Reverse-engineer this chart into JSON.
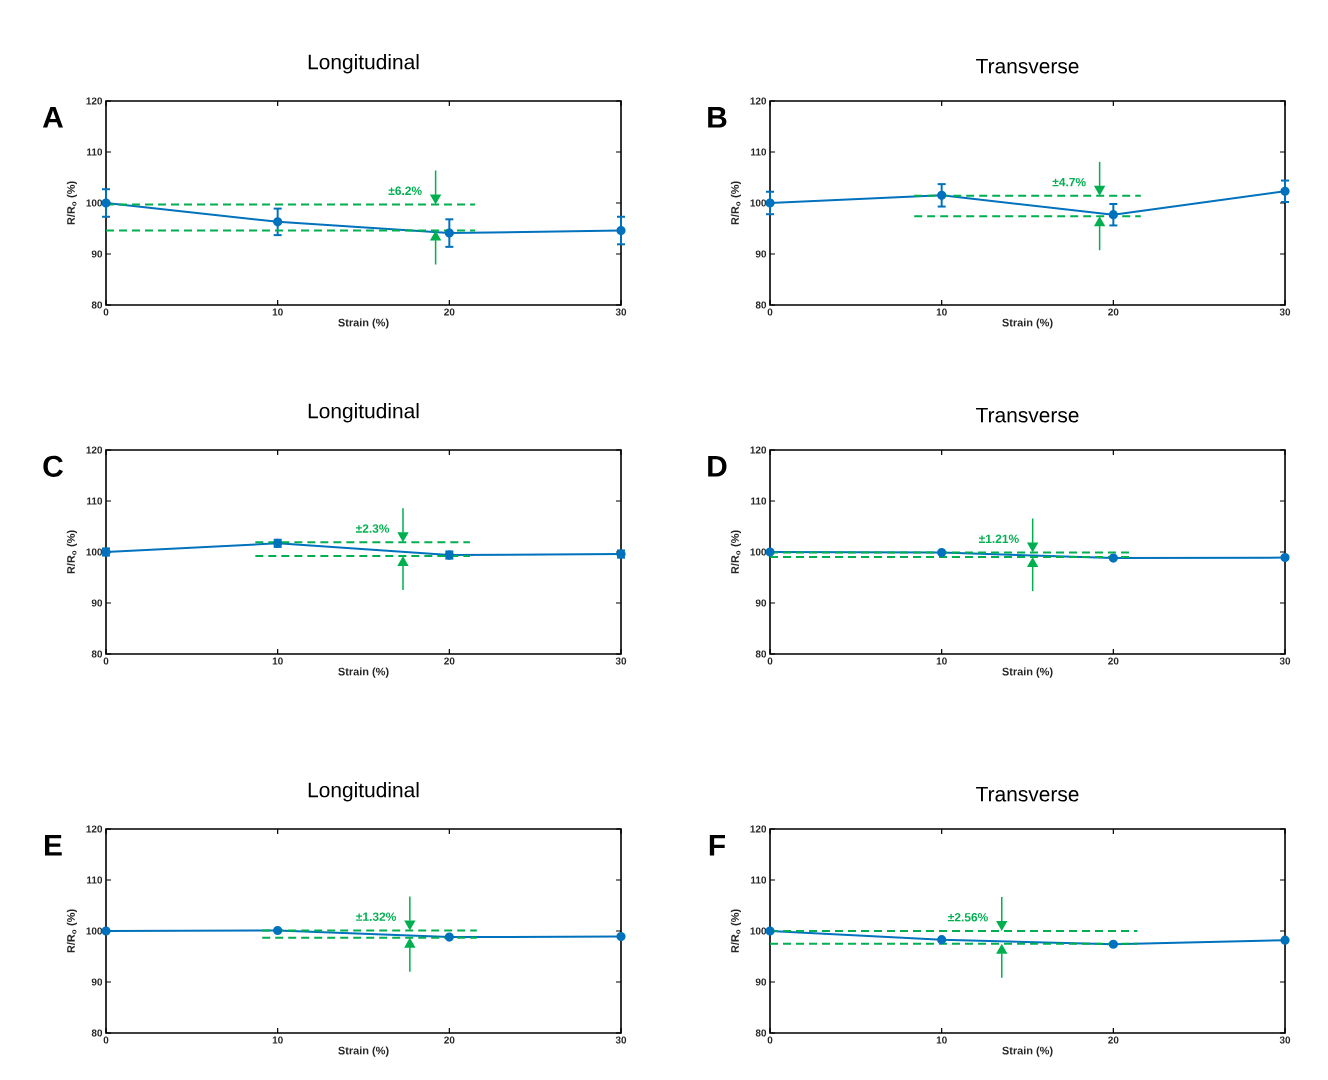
{
  "chart_data": [
    {
      "type": "line",
      "title": "Longitudinal",
      "xlabel": "Strain (%)",
      "ylabel": "R/R$_{o}$ (%)",
      "x": [
        0,
        10,
        20,
        30
      ],
      "xlim": [
        0,
        30
      ],
      "ylim": [
        80,
        120
      ],
      "xticks": [
        0,
        10,
        20,
        30
      ],
      "yticks": [
        80,
        90,
        100,
        110,
        120
      ],
      "marker": "circle",
      "annotations": [
        "A",
        {
          "text": "±6.2%",
          "x": 19.2,
          "y": 99.7
        }
      ],
      "series": [
        {
          "color": "#0072bd",
          "values": [
            100,
            96.3,
            94.1,
            94.6
          ],
          "errors": [
            2.7,
            2.6,
            2.7,
            2.7
          ]
        },
        {
          "color": "#00b050",
          "x": [
            0,
            21.5
          ],
          "values": [
            99.7,
            99.7
          ],
          "line_style": "dashed",
          "marker": "none"
        },
        {
          "color": "#00b050",
          "x": [
            0,
            21.5
          ],
          "values": [
            94.6,
            94.6
          ],
          "line_style": "dashed",
          "marker": "none"
        }
      ]
    },
    {
      "type": "line",
      "title": "Transverse",
      "xlabel": "Strain (%)",
      "ylabel": "R/R$_{o}$ (%)",
      "x": [
        0,
        10,
        20,
        30
      ],
      "xlim": [
        0,
        30
      ],
      "ylim": [
        80,
        120
      ],
      "xticks": [
        0,
        10,
        20,
        30
      ],
      "yticks": [
        80,
        90,
        100,
        110,
        120
      ],
      "marker": "circle",
      "annotations": [
        "B",
        {
          "text": "±4.7%",
          "x": 19.2,
          "y": 101.4
        }
      ],
      "series": [
        {
          "color": "#0072bd",
          "values": [
            100,
            101.5,
            97.7,
            102.3
          ],
          "errors": [
            2.2,
            2.2,
            2.1,
            2.1
          ]
        },
        {
          "color": "#00b050",
          "x": [
            8.4,
            21.6
          ],
          "values": [
            101.4,
            101.4
          ],
          "line_style": "dashed",
          "marker": "none"
        },
        {
          "color": "#00b050",
          "x": [
            8.4,
            21.6
          ],
          "values": [
            97.4,
            97.4
          ],
          "line_style": "dashed",
          "marker": "none"
        }
      ]
    },
    {
      "type": "line",
      "title": "Longitudinal",
      "xlabel": "Strain (%)",
      "ylabel": "R/R$_{o}$ (%)",
      "x": [
        0,
        10,
        20,
        30
      ],
      "xlim": [
        0,
        30
      ],
      "ylim": [
        80,
        120
      ],
      "xticks": [
        0,
        10,
        20,
        30
      ],
      "yticks": [
        80,
        90,
        100,
        110,
        120
      ],
      "marker": "circle",
      "annotations": [
        "C",
        {
          "text": "±2.3%",
          "x": 17.3,
          "y": 101.9
        }
      ],
      "series": [
        {
          "color": "#0072bd",
          "values": [
            100,
            101.7,
            99.4,
            99.6
          ],
          "errors": [
            0.7,
            0.7,
            0.7,
            0.7
          ]
        },
        {
          "color": "#00b050",
          "x": [
            8.7,
            21.2
          ],
          "values": [
            101.9,
            101.9
          ],
          "line_style": "dashed",
          "marker": "none"
        },
        {
          "color": "#00b050",
          "x": [
            8.7,
            21.2
          ],
          "values": [
            99.2,
            99.2
          ],
          "line_style": "dashed",
          "marker": "none"
        }
      ]
    },
    {
      "type": "line",
      "title": "Transverse",
      "xlabel": "Strain (%)",
      "ylabel": "R/R$_{o}$ (%)",
      "x": [
        0,
        10,
        20,
        30
      ],
      "xlim": [
        0,
        30
      ],
      "ylim": [
        80,
        120
      ],
      "xticks": [
        0,
        10,
        20,
        30
      ],
      "yticks": [
        80,
        90,
        100,
        110,
        120
      ],
      "marker": "circle",
      "annotations": [
        "D",
        {
          "text": "±1.21%",
          "x": 15.3,
          "y": 99.9
        }
      ],
      "series": [
        {
          "color": "#0072bd",
          "values": [
            100,
            99.9,
            98.8,
            98.9
          ]
        },
        {
          "color": "#00b050",
          "x": [
            0,
            21.0
          ],
          "values": [
            99.9,
            99.9
          ],
          "line_style": "dashed",
          "marker": "none"
        },
        {
          "color": "#00b050",
          "x": [
            0,
            21.0
          ],
          "values": [
            99.0,
            99.0
          ],
          "line_style": "dashed",
          "marker": "none"
        }
      ]
    },
    {
      "type": "line",
      "title": "Longitudinal",
      "xlabel": "Strain (%)",
      "ylabel": "R/R$_{o}$ (%)",
      "x": [
        0,
        10,
        20,
        30
      ],
      "xlim": [
        0,
        30
      ],
      "ylim": [
        80,
        120
      ],
      "xticks": [
        0,
        10,
        20,
        30
      ],
      "yticks": [
        80,
        90,
        100,
        110,
        120
      ],
      "marker": "circle",
      "annotations": [
        "E",
        {
          "text": "±1.32%",
          "x": 17.7,
          "y": 100.1
        }
      ],
      "series": [
        {
          "color": "#0072bd",
          "values": [
            100,
            100.1,
            98.8,
            98.9
          ]
        },
        {
          "color": "#00b050",
          "x": [
            9.1,
            21.6
          ],
          "values": [
            100.1,
            100.1
          ],
          "line_style": "dashed",
          "marker": "none"
        },
        {
          "color": "#00b050",
          "x": [
            9.1,
            21.6
          ],
          "values": [
            98.7,
            98.7
          ],
          "line_style": "dashed",
          "marker": "none"
        }
      ]
    },
    {
      "type": "line",
      "title": "Transverse",
      "xlabel": "Strain (%)",
      "ylabel": "R/R$_{o}$ (%)",
      "x": [
        0,
        10,
        20,
        30
      ],
      "xlim": [
        0,
        30
      ],
      "ylim": [
        80,
        120
      ],
      "xticks": [
        0,
        10,
        20,
        30
      ],
      "yticks": [
        80,
        90,
        100,
        110,
        120
      ],
      "marker": "circle",
      "annotations": [
        "F",
        {
          "text": "±2.56%",
          "x": 13.5,
          "y": 100.0
        }
      ],
      "series": [
        {
          "color": "#0072bd",
          "values": [
            100,
            98.3,
            97.4,
            98.2
          ]
        },
        {
          "color": "#00b050",
          "x": [
            0,
            21.4
          ],
          "values": [
            100.0,
            100.0
          ],
          "line_style": "dashed",
          "marker": "none"
        },
        {
          "color": "#00b050",
          "x": [
            0,
            21.4
          ],
          "values": [
            97.5,
            97.5
          ],
          "line_style": "dashed",
          "marker": "none"
        }
      ]
    }
  ]
}
